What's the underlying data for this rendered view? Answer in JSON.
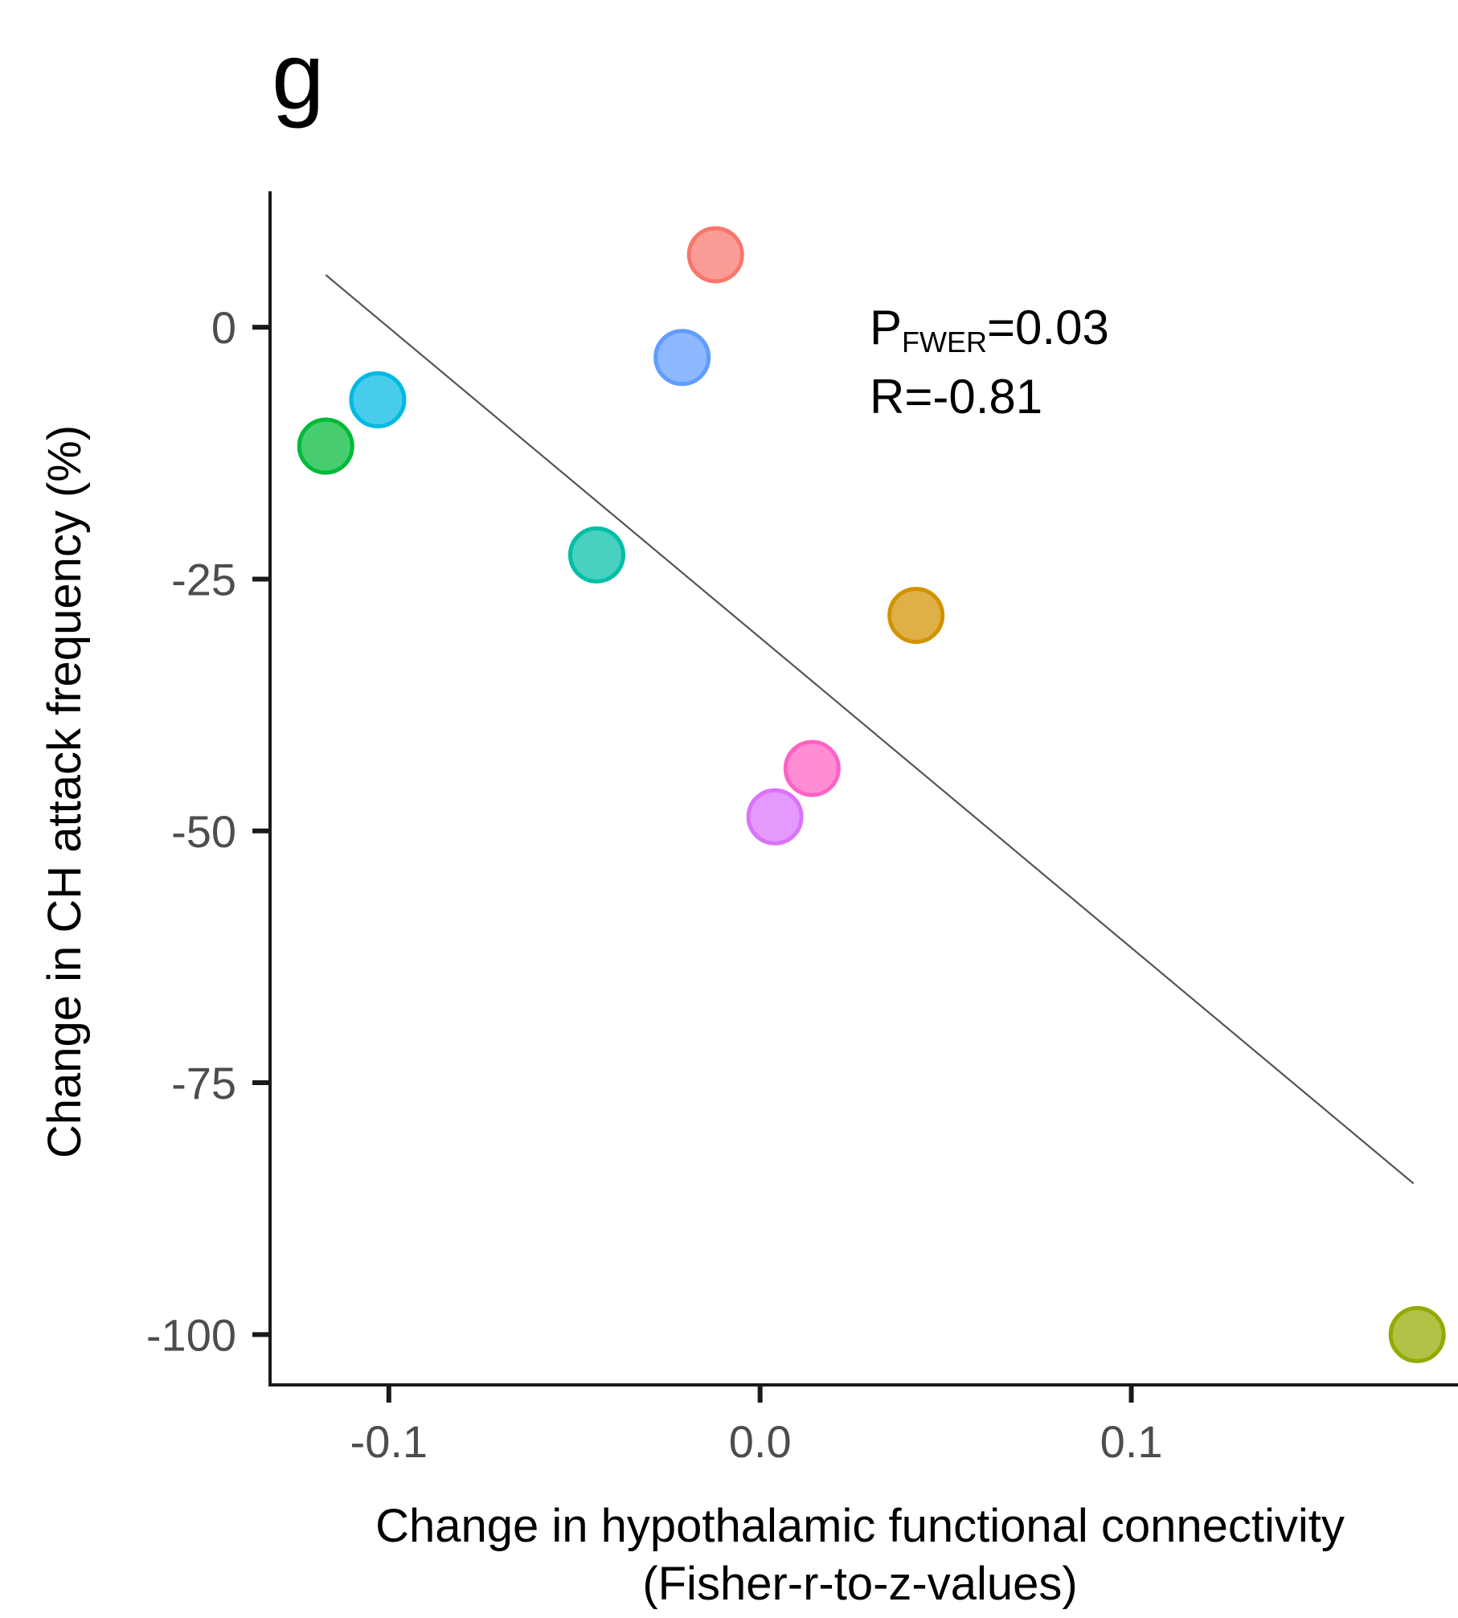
{
  "chart_data": {
    "type": "scatter",
    "panel_label": "g",
    "xlabel_line1": "Change in hypothalamic functional connectivity",
    "xlabel_line2": "(Fisher-r-to-z-values)",
    "ylabel": "Change in CH attack frequency (%)",
    "xlim": [
      -0.132,
      0.188
    ],
    "ylim": [
      -105,
      13.5
    ],
    "x_ticks": [
      {
        "value": -0.1,
        "label": "-0.1"
      },
      {
        "value": 0.0,
        "label": "0.0"
      },
      {
        "value": 0.1,
        "label": "0.1"
      }
    ],
    "y_ticks": [
      {
        "value": 0,
        "label": "0"
      },
      {
        "value": -25,
        "label": "-25"
      },
      {
        "value": -50,
        "label": "-50"
      },
      {
        "value": -75,
        "label": "-75"
      },
      {
        "value": -100,
        "label": "-100"
      }
    ],
    "points": [
      {
        "x": -0.012,
        "y": 7.2,
        "color": "#f8766d"
      },
      {
        "x": -0.021,
        "y": -3.0,
        "color": "#619cff"
      },
      {
        "x": -0.103,
        "y": -7.2,
        "color": "#00b9e3"
      },
      {
        "x": -0.117,
        "y": -11.8,
        "color": "#00ba38"
      },
      {
        "x": -0.044,
        "y": -22.6,
        "color": "#00bfa5"
      },
      {
        "x": 0.042,
        "y": -28.6,
        "color": "#d39200"
      },
      {
        "x": 0.014,
        "y": -43.8,
        "color": "#ff61c3"
      },
      {
        "x": 0.004,
        "y": -48.6,
        "color": "#db72fb"
      },
      {
        "x": 0.177,
        "y": -100.0,
        "color": "#93aa00"
      }
    ],
    "regression_line": {
      "x_start": -0.117,
      "y_start": 5.2,
      "x_end": 0.176,
      "y_end": -85.0,
      "color": "#555555"
    },
    "annotation": {
      "p_main": "P",
      "p_sub": "FWER",
      "p_value": "=0.03",
      "r_text": "R=-0.81"
    },
    "grid": false,
    "legend": "none"
  }
}
